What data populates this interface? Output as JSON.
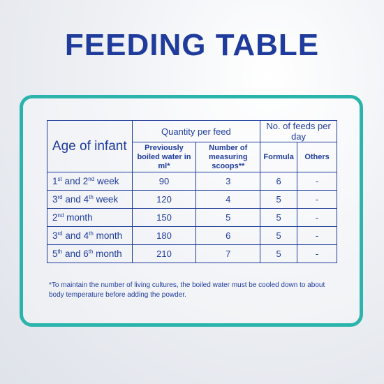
{
  "title": "FEEDING TABLE",
  "header": {
    "age_of_infant": "Age of infant",
    "quantity_per_feed": "Quantity per feed",
    "feeds_per_day": "No. of feeds per day",
    "boiled_water": "Previously boiled water in ml*",
    "scoops": "Number of measuring scoops**",
    "formula": "Formula",
    "others": "Others"
  },
  "rows": [
    {
      "age_a": "1",
      "sup_a": "st",
      "mid": " and 2",
      "sup_b": "nd",
      "tail": " week",
      "water": "90",
      "scoops": "3",
      "formula": "6",
      "others": "-"
    },
    {
      "age_a": "3",
      "sup_a": "rd",
      "mid": " and 4",
      "sup_b": "th",
      "tail": " week",
      "water": "120",
      "scoops": "4",
      "formula": "5",
      "others": "-"
    },
    {
      "age_a": "2",
      "sup_a": "nd",
      "mid": "",
      "sup_b": "",
      "tail": " month",
      "water": "150",
      "scoops": "5",
      "formula": "5",
      "others": "-"
    },
    {
      "age_a": "3",
      "sup_a": "rd",
      "mid": " and 4",
      "sup_b": "th",
      "tail": " month",
      "water": "180",
      "scoops": "6",
      "formula": "5",
      "others": "-"
    },
    {
      "age_a": "5",
      "sup_a": "th",
      "mid": " and 6",
      "sup_b": "th",
      "tail": " month",
      "water": "210",
      "scoops": "7",
      "formula": "5",
      "others": "-"
    }
  ],
  "footnote_line1": "*To maintain the number of living cultures, the boiled water must be cooled down to about",
  "footnote_line2": "body temperature before adding the powder.",
  "colors": {
    "text": "#1f3c9c",
    "frame": "#2ab4ab"
  }
}
